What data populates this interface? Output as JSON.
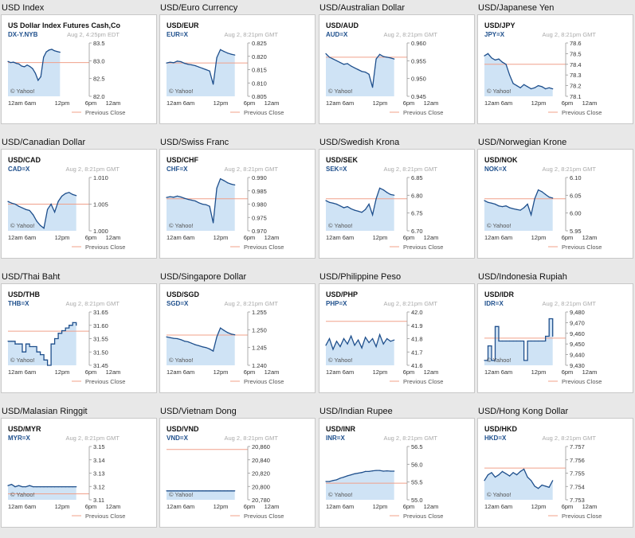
{
  "colors": {
    "line": "#1e4f8c",
    "fill": "#cfe3f5",
    "prev_close": "#f0a08a",
    "border": "#c8c8c8"
  },
  "charts": [
    {
      "heading": "USD Index",
      "symbol_title": "US Dollar Index Futures Cash,Co",
      "symbol": "DX-Y.NYB",
      "timestamp": "Aug 2, 4:25pm EDT",
      "source": "© Yahoo!",
      "legend": "Previous Close",
      "chart_data": {
        "type": "line",
        "x_ticks": [
          "12am",
          "6am",
          "12pm",
          "6pm",
          "12am"
        ],
        "y_ticks": [
          "83.5",
          "83.0",
          "82.5",
          "82.0"
        ],
        "ylim": [
          82.0,
          83.5
        ],
        "prev_close": 82.95,
        "end_frac": 0.64,
        "style": "smooth",
        "values": [
          82.98,
          82.95,
          82.96,
          82.93,
          82.91,
          82.85,
          82.83,
          82.88,
          82.84,
          82.78,
          82.65,
          82.45,
          82.55,
          83.1,
          83.25,
          83.3,
          83.32,
          83.28,
          83.26,
          83.24
        ]
      }
    },
    {
      "heading": "USD/Euro Currency",
      "symbol_title": "USD/EUR",
      "symbol": "EUR=X",
      "timestamp": "Aug 2, 8:21pm GMT",
      "source": "© Yahoo!",
      "legend": "Previous Close",
      "chart_data": {
        "type": "line",
        "x_ticks": [
          "12am",
          "6am",
          "12pm",
          "6pm",
          "12am"
        ],
        "y_ticks": [
          "0.825",
          "0.820",
          "0.815",
          "0.810",
          "0.805"
        ],
        "ylim": [
          0.805,
          0.825
        ],
        "prev_close": 0.8175,
        "end_frac": 0.84,
        "style": "smooth",
        "values": [
          0.8175,
          0.8178,
          0.8176,
          0.8182,
          0.818,
          0.8174,
          0.817,
          0.8168,
          0.8165,
          0.816,
          0.8155,
          0.815,
          0.8145,
          0.8095,
          0.8195,
          0.8225,
          0.8218,
          0.8212,
          0.8208,
          0.8205
        ]
      }
    },
    {
      "heading": "USD/Australian Dollar",
      "symbol_title": "USD/AUD",
      "symbol": "AUD=X",
      "timestamp": "Aug 2, 8:21pm GMT",
      "source": "© Yahoo!",
      "legend": "Previous Close",
      "chart_data": {
        "type": "line",
        "x_ticks": [
          "12am",
          "6am",
          "12pm",
          "6pm",
          "12am"
        ],
        "y_ticks": [
          "0.960",
          "0.955",
          "0.950",
          "0.945"
        ],
        "ylim": [
          0.945,
          0.96
        ],
        "prev_close": 0.956,
        "end_frac": 0.84,
        "style": "smooth",
        "values": [
          0.957,
          0.956,
          0.9555,
          0.955,
          0.9545,
          0.954,
          0.9542,
          0.9535,
          0.953,
          0.9525,
          0.952,
          0.9518,
          0.9512,
          0.9475,
          0.9555,
          0.9568,
          0.9562,
          0.956,
          0.9558,
          0.9555
        ]
      }
    },
    {
      "heading": "USD/Japanese Yen",
      "symbol_title": "USD/JPY",
      "symbol": "JPY=X",
      "timestamp": "Aug 2, 8:21pm GMT",
      "source": "© Yahoo!",
      "legend": "Previous Close",
      "chart_data": {
        "type": "line",
        "x_ticks": [
          "12am",
          "6am",
          "12pm",
          "6pm",
          "12am"
        ],
        "y_ticks": [
          "78.6",
          "78.5",
          "78.4",
          "78.3",
          "78.2",
          "78.1"
        ],
        "ylim": [
          78.1,
          78.6
        ],
        "prev_close": 78.4,
        "end_frac": 0.84,
        "style": "smooth",
        "values": [
          78.48,
          78.5,
          78.46,
          78.44,
          78.45,
          78.42,
          78.4,
          78.3,
          78.22,
          78.2,
          78.18,
          78.21,
          78.19,
          78.17,
          78.18,
          78.2,
          78.19,
          78.17,
          78.18,
          78.17
        ]
      }
    },
    {
      "heading": "USD/Canadian Dollar",
      "symbol_title": "USD/CAD",
      "symbol": "CAD=X",
      "timestamp": "Aug 2, 8:21pm GMT",
      "source": "© Yahoo!",
      "legend": "Previous Close",
      "chart_data": {
        "type": "line",
        "x_ticks": [
          "12am",
          "6am",
          "12pm",
          "6pm",
          "12am"
        ],
        "y_ticks": [
          "1.010",
          "1.005",
          "1.000"
        ],
        "ylim": [
          1.0,
          1.01
        ],
        "prev_close": 1.005,
        "end_frac": 0.84,
        "style": "smooth",
        "values": [
          1.0055,
          1.0052,
          1.005,
          1.0046,
          1.0043,
          1.004,
          1.0038,
          1.003,
          1.0018,
          1.001,
          1.0005,
          1.004,
          1.005,
          1.0035,
          1.0055,
          1.0065,
          1.007,
          1.0072,
          1.0068,
          1.0066
        ]
      }
    },
    {
      "heading": "USD/Swiss Franc",
      "symbol_title": "USD/CHF",
      "symbol": "CHF=X",
      "timestamp": "Aug 2, 8:21pm GMT",
      "source": "© Yahoo!",
      "legend": "Previous Close",
      "chart_data": {
        "type": "line",
        "x_ticks": [
          "12am",
          "6am",
          "12pm",
          "6pm",
          "12am"
        ],
        "y_ticks": [
          "0.990",
          "0.985",
          "0.980",
          "0.975",
          "0.970"
        ],
        "ylim": [
          0.97,
          0.99
        ],
        "prev_close": 0.982,
        "end_frac": 0.84,
        "style": "smooth",
        "values": [
          0.9825,
          0.9828,
          0.9826,
          0.983,
          0.9827,
          0.9822,
          0.9818,
          0.9815,
          0.9812,
          0.9805,
          0.98,
          0.9798,
          0.9792,
          0.973,
          0.986,
          0.9895,
          0.9888,
          0.988,
          0.9875,
          0.9872
        ]
      }
    },
    {
      "heading": "USD/Swedish Krona",
      "symbol_title": "USD/SEK",
      "symbol": "SEK=X",
      "timestamp": "Aug 2, 8:21pm GMT",
      "source": "© Yahoo!",
      "legend": "Previous Close",
      "chart_data": {
        "type": "line",
        "x_ticks": [
          "12am",
          "6am",
          "12pm",
          "6pm",
          "12am"
        ],
        "y_ticks": [
          "6.85",
          "6.80",
          "6.75",
          "6.70"
        ],
        "ylim": [
          6.7,
          6.85
        ],
        "prev_close": 6.79,
        "end_frac": 0.84,
        "style": "smooth",
        "values": [
          6.785,
          6.78,
          6.778,
          6.775,
          6.77,
          6.765,
          6.768,
          6.762,
          6.758,
          6.755,
          6.752,
          6.76,
          6.775,
          6.745,
          6.79,
          6.82,
          6.815,
          6.808,
          6.802,
          6.8
        ]
      }
    },
    {
      "heading": "USD/Norwegian Krone",
      "symbol_title": "USD/NOK",
      "symbol": "NOK=X",
      "timestamp": "Aug 2, 8:21pm GMT",
      "source": "© Yahoo!",
      "legend": "Previous Close",
      "chart_data": {
        "type": "line",
        "x_ticks": [
          "12am",
          "6am",
          "12pm",
          "6pm",
          "12am"
        ],
        "y_ticks": [
          "6.10",
          "6.05",
          "6.00",
          "5.95"
        ],
        "ylim": [
          5.95,
          6.1
        ],
        "prev_close": 6.04,
        "end_frac": 0.84,
        "style": "smooth",
        "values": [
          6.035,
          6.03,
          6.028,
          6.025,
          6.02,
          6.018,
          6.02,
          6.015,
          6.012,
          6.01,
          6.008,
          6.015,
          6.025,
          5.995,
          6.04,
          6.065,
          6.06,
          6.052,
          6.045,
          6.042
        ]
      }
    },
    {
      "heading": "USD/Thai Baht",
      "symbol_title": "USD/THB",
      "symbol": "THB=X",
      "timestamp": "Aug 2, 8:21pm GMT",
      "source": "© Yahoo!",
      "legend": "Previous Close",
      "chart_data": {
        "type": "line",
        "x_ticks": [
          "12am",
          "6am",
          "12pm",
          "6pm",
          "12am"
        ],
        "y_ticks": [
          "31.65",
          "31.60",
          "31.55",
          "31.50",
          "31.45"
        ],
        "ylim": [
          31.45,
          31.65
        ],
        "prev_close": 31.578,
        "end_frac": 0.84,
        "style": "step",
        "values": [
          31.54,
          31.54,
          31.53,
          31.53,
          31.5,
          31.53,
          31.52,
          31.52,
          31.5,
          31.49,
          31.47,
          31.45,
          31.53,
          31.55,
          31.57,
          31.58,
          31.59,
          31.6,
          31.61,
          31.6
        ]
      }
    },
    {
      "heading": "USD/Singapore Dollar",
      "symbol_title": "USD/SGD",
      "symbol": "SGD=X",
      "timestamp": "Aug 2, 8:21pm GMT",
      "source": "© Yahoo!",
      "legend": "Previous Close",
      "chart_data": {
        "type": "line",
        "x_ticks": [
          "12am",
          "6am",
          "12pm",
          "6pm",
          "12am"
        ],
        "y_ticks": [
          "1.255",
          "1.250",
          "1.245",
          "1.240"
        ],
        "ylim": [
          1.24,
          1.255
        ],
        "prev_close": 1.2485,
        "end_frac": 0.84,
        "style": "smooth",
        "values": [
          1.248,
          1.2478,
          1.2476,
          1.2475,
          1.2472,
          1.2468,
          1.2466,
          1.2462,
          1.2458,
          1.2455,
          1.2452,
          1.245,
          1.2446,
          1.244,
          1.248,
          1.2505,
          1.2498,
          1.2492,
          1.2488,
          1.2486
        ]
      }
    },
    {
      "heading": "USD/Philippine Peso",
      "symbol_title": "USD/PHP",
      "symbol": "PHP=X",
      "timestamp": "Aug 2, 8:21pm GMT",
      "source": "© Yahoo!",
      "legend": "Previous Close",
      "chart_data": {
        "type": "line",
        "x_ticks": [
          "12am",
          "6am",
          "12pm",
          "6pm",
          "12am"
        ],
        "y_ticks": [
          "42.0",
          "41.9",
          "41.8",
          "41.7",
          "41.6"
        ],
        "ylim": [
          41.6,
          42.0
        ],
        "prev_close": 41.93,
        "end_frac": 0.84,
        "style": "spiky",
        "values": [
          41.75,
          41.8,
          41.72,
          41.78,
          41.74,
          41.8,
          41.76,
          41.82,
          41.75,
          41.79,
          41.73,
          41.81,
          41.77,
          41.8,
          41.74,
          41.83,
          41.76,
          41.8,
          41.78,
          41.79
        ]
      }
    },
    {
      "heading": "USD/Indonesia Rupiah",
      "symbol_title": "USD/IDR",
      "symbol": "IDR=X",
      "timestamp": "Aug 2, 8:21pm GMT",
      "source": "© Yahoo!",
      "legend": "Previous Close",
      "chart_data": {
        "type": "line",
        "x_ticks": [
          "12am",
          "6am",
          "12pm",
          "6pm",
          "12am"
        ],
        "y_ticks": [
          "9,480",
          "9,470",
          "9,460",
          "9,450",
          "9,440",
          "9,430"
        ],
        "ylim": [
          9430,
          9485
        ],
        "prev_close": 9458,
        "end_frac": 0.84,
        "style": "step",
        "values": [
          9435,
          9450,
          9435,
          9470,
          9455,
          9455,
          9455,
          9455,
          9455,
          9455,
          9455,
          9435,
          9455,
          9455,
          9455,
          9455,
          9455,
          9460,
          9478,
          9460
        ]
      }
    },
    {
      "heading": "USD/Malasian Ringgit",
      "symbol_title": "USD/MYR",
      "symbol": "MYR=X",
      "timestamp": "Aug 2, 8:21pm GMT",
      "source": "© Yahoo!",
      "legend": "Previous Close",
      "chart_data": {
        "type": "line",
        "x_ticks": [
          "12am",
          "6am",
          "12pm",
          "6pm",
          "12am"
        ],
        "y_ticks": [
          "3.15",
          "3.14",
          "3.13",
          "3.12",
          "3.11"
        ],
        "ylim": [
          3.11,
          3.155
        ],
        "prev_close": 3.115,
        "end_frac": 0.84,
        "style": "spiky",
        "values": [
          3.122,
          3.123,
          3.121,
          3.122,
          3.121,
          3.121,
          3.122,
          3.121,
          3.121,
          3.121,
          3.121,
          3.121,
          3.121,
          3.121,
          3.121,
          3.121,
          3.121,
          3.121,
          3.121,
          3.121
        ]
      }
    },
    {
      "heading": "USD/Vietnam Dong",
      "symbol_title": "USD/VND",
      "symbol": "VND=X",
      "timestamp": "Aug 2, 8:21pm GMT",
      "source": "© Yahoo!",
      "legend": "Previous Close",
      "chart_data": {
        "type": "line",
        "x_ticks": [
          "12am",
          "6am",
          "12pm",
          "6pm",
          "12am"
        ],
        "y_ticks": [
          "20,860",
          "20,840",
          "20,820",
          "20,800",
          "20,780"
        ],
        "ylim": [
          20780,
          20870
        ],
        "prev_close": 20865,
        "end_frac": 0.84,
        "style": "spiky",
        "values": [
          20795,
          20795,
          20795,
          20795,
          20795,
          20795,
          20795,
          20795,
          20795,
          20795,
          20795,
          20795,
          20795,
          20795,
          20795,
          20795,
          20795,
          20795,
          20795,
          20795
        ]
      }
    },
    {
      "heading": "USD/Indian Rupee",
      "symbol_title": "USD/INR",
      "symbol": "INR=X",
      "timestamp": "Aug 2, 8:21pm GMT",
      "source": "© Yahoo!",
      "legend": "Previous Close",
      "chart_data": {
        "type": "line",
        "x_ticks": [
          "12am",
          "6am",
          "12pm",
          "6pm",
          "12am"
        ],
        "y_ticks": [
          "56.5",
          "56.0",
          "55.5",
          "55.0"
        ],
        "ylim": [
          55.0,
          56.6
        ],
        "prev_close": 55.5,
        "end_frac": 0.84,
        "style": "smooth",
        "values": [
          55.55,
          55.55,
          55.58,
          55.6,
          55.65,
          55.68,
          55.72,
          55.75,
          55.78,
          55.8,
          55.82,
          55.85,
          55.85,
          55.87,
          55.88,
          55.88,
          55.86,
          55.87,
          55.86,
          55.86
        ]
      }
    },
    {
      "heading": "USD/Hong Kong Dollar",
      "symbol_title": "USD/HKD",
      "symbol": "HKD=X",
      "timestamp": "Aug 2, 8:21pm GMT",
      "source": "© Yahoo!",
      "legend": "Previous Close",
      "chart_data": {
        "type": "line",
        "x_ticks": [
          "12am",
          "6am",
          "12pm",
          "6pm",
          "12am"
        ],
        "y_ticks": [
          "7.757",
          "7.756",
          "7.755",
          "7.754",
          "7.753"
        ],
        "ylim": [
          7.7528,
          7.7575
        ],
        "prev_close": 7.7556,
        "end_frac": 0.84,
        "style": "smooth",
        "values": [
          7.7545,
          7.755,
          7.7552,
          7.7548,
          7.755,
          7.7553,
          7.7551,
          7.7549,
          7.7552,
          7.755,
          7.7553,
          7.7555,
          7.7548,
          7.7545,
          7.754,
          7.7538,
          7.7541,
          7.754,
          7.7539,
          7.7545
        ]
      }
    }
  ]
}
